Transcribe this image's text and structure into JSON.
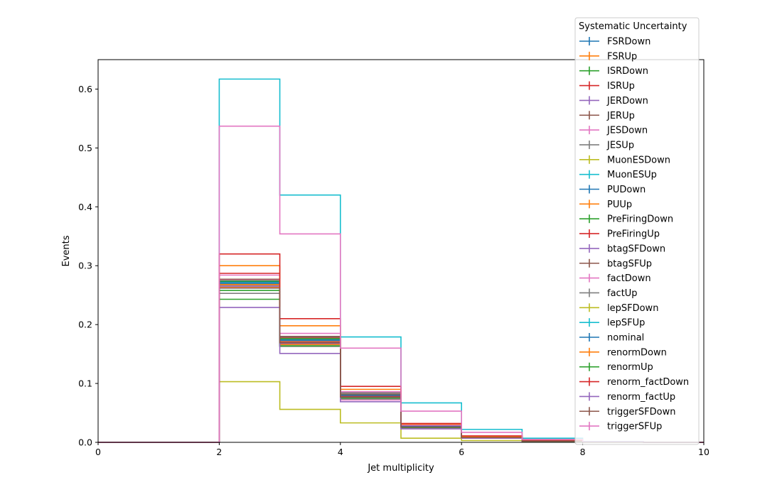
{
  "chart_data": {
    "type": "step-histogram",
    "xlabel": "Jet multiplicity",
    "ylabel": "Events",
    "xlim": [
      0,
      10
    ],
    "ylim": [
      0,
      0.65
    ],
    "x_ticks": [
      "0",
      "2",
      "4",
      "6",
      "8",
      "10"
    ],
    "y_ticks": [
      "0.0",
      "0.1",
      "0.2",
      "0.3",
      "0.4",
      "0.5",
      "0.6"
    ],
    "bin_edges": [
      0,
      1,
      2,
      3,
      4,
      5,
      6,
      7,
      8,
      9,
      10
    ],
    "legend_title": "Systematic Uncertainty",
    "legend_position": "top-right",
    "series": [
      {
        "name": "FSRDown",
        "color": "#1f77b4",
        "values": [
          0,
          0,
          0.268,
          0.172,
          0.078,
          0.026,
          0.008,
          0.002,
          0.0005,
          0
        ]
      },
      {
        "name": "FSRUp",
        "color": "#ff7f0e",
        "values": [
          0,
          0,
          0.263,
          0.166,
          0.075,
          0.025,
          0.007,
          0.002,
          0.0005,
          0
        ]
      },
      {
        "name": "ISRDown",
        "color": "#2ca02c",
        "values": [
          0,
          0,
          0.243,
          0.163,
          0.074,
          0.025,
          0.007,
          0.002,
          0.0005,
          0
        ]
      },
      {
        "name": "ISRUp",
        "color": "#d62728",
        "values": [
          0,
          0,
          0.287,
          0.178,
          0.085,
          0.029,
          0.009,
          0.002,
          0.0005,
          0
        ]
      },
      {
        "name": "JERDown",
        "color": "#9467bd",
        "values": [
          0,
          0,
          0.272,
          0.174,
          0.081,
          0.027,
          0.009,
          0.002,
          0.0005,
          0
        ]
      },
      {
        "name": "JERUp",
        "color": "#8c564b",
        "values": [
          0,
          0,
          0.272,
          0.176,
          0.08,
          0.027,
          0.009,
          0.002,
          0.0005,
          0
        ]
      },
      {
        "name": "JESDown",
        "color": "#e377c2",
        "values": [
          0,
          0,
          0.276,
          0.168,
          0.072,
          0.023,
          0.007,
          0.002,
          0.0004,
          0
        ]
      },
      {
        "name": "JESUp",
        "color": "#7f7f7f",
        "values": [
          0,
          0,
          0.267,
          0.179,
          0.084,
          0.031,
          0.01,
          0.003,
          0.0006,
          0
        ]
      },
      {
        "name": "MuonESDown",
        "color": "#bcbd22",
        "values": [
          0,
          0,
          0.27,
          0.173,
          0.08,
          0.027,
          0.009,
          0.002,
          0.0005,
          0
        ]
      },
      {
        "name": "MuonESUp",
        "color": "#17becf",
        "values": [
          0,
          0,
          0.271,
          0.174,
          0.08,
          0.027,
          0.009,
          0.002,
          0.0005,
          0
        ]
      },
      {
        "name": "PUDown",
        "color": "#1f77b4",
        "values": [
          0,
          0,
          0.273,
          0.175,
          0.081,
          0.027,
          0.009,
          0.002,
          0.0005,
          0
        ]
      },
      {
        "name": "PUUp",
        "color": "#ff7f0e",
        "values": [
          0,
          0,
          0.268,
          0.172,
          0.079,
          0.026,
          0.009,
          0.002,
          0.0005,
          0
        ]
      },
      {
        "name": "PreFiringDown",
        "color": "#2ca02c",
        "values": [
          0,
          0,
          0.274,
          0.176,
          0.081,
          0.027,
          0.009,
          0.002,
          0.0005,
          0
        ]
      },
      {
        "name": "PreFiringUp",
        "color": "#d62728",
        "values": [
          0,
          0,
          0.265,
          0.17,
          0.078,
          0.026,
          0.008,
          0.002,
          0.0005,
          0
        ]
      },
      {
        "name": "btagSFDown",
        "color": "#9467bd",
        "values": [
          0,
          0,
          0.265,
          0.168,
          0.077,
          0.026,
          0.008,
          0.002,
          0.0005,
          0
        ]
      },
      {
        "name": "btagSFUp",
        "color": "#8c564b",
        "values": [
          0,
          0,
          0.277,
          0.18,
          0.082,
          0.028,
          0.009,
          0.002,
          0.0005,
          0
        ]
      },
      {
        "name": "factDown",
        "color": "#e377c2",
        "values": [
          0,
          0,
          0.284,
          0.185,
          0.086,
          0.029,
          0.01,
          0.003,
          0.0006,
          0
        ]
      },
      {
        "name": "factUp",
        "color": "#7f7f7f",
        "values": [
          0,
          0,
          0.253,
          0.163,
          0.075,
          0.025,
          0.008,
          0.002,
          0.0004,
          0
        ]
      },
      {
        "name": "lepSFDown",
        "color": "#bcbd22",
        "values": [
          0,
          0,
          0.103,
          0.056,
          0.033,
          0.007,
          0.003,
          0.001,
          0.0002,
          0
        ]
      },
      {
        "name": "lepSFUp",
        "color": "#17becf",
        "values": [
          0,
          0,
          0.617,
          0.42,
          0.179,
          0.067,
          0.022,
          0.007,
          0.0015,
          0
        ]
      },
      {
        "name": "nominal",
        "color": "#1f77b4",
        "values": [
          0,
          0,
          0.27,
          0.173,
          0.08,
          0.027,
          0.009,
          0.002,
          0.0005,
          0
        ]
      },
      {
        "name": "renormDown",
        "color": "#ff7f0e",
        "values": [
          0,
          0,
          0.3,
          0.198,
          0.09,
          0.031,
          0.01,
          0.003,
          0.0006,
          0
        ]
      },
      {
        "name": "renormUp",
        "color": "#2ca02c",
        "values": [
          0,
          0,
          0.258,
          0.164,
          0.076,
          0.025,
          0.008,
          0.002,
          0.0005,
          0
        ]
      },
      {
        "name": "renorm_factDown",
        "color": "#d62728",
        "values": [
          0,
          0,
          0.32,
          0.21,
          0.095,
          0.032,
          0.011,
          0.003,
          0.0006,
          0
        ]
      },
      {
        "name": "renorm_factUp",
        "color": "#9467bd",
        "values": [
          0,
          0,
          0.229,
          0.151,
          0.069,
          0.023,
          0.007,
          0.002,
          0.0004,
          0
        ]
      },
      {
        "name": "triggerSFDown",
        "color": "#8c564b",
        "values": [
          0,
          0,
          0.262,
          0.169,
          0.077,
          0.026,
          0.008,
          0.002,
          0.0005,
          0
        ]
      },
      {
        "name": "triggerSFUp",
        "color": "#e377c2",
        "values": [
          0,
          0,
          0.537,
          0.354,
          0.16,
          0.053,
          0.017,
          0.005,
          0.001,
          0
        ]
      }
    ]
  }
}
